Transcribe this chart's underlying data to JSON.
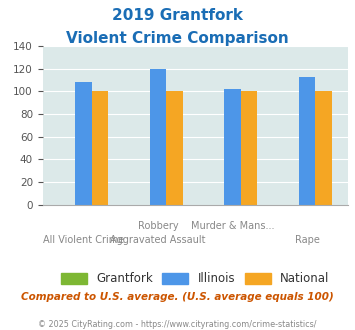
{
  "title_line1": "2019 Grantfork",
  "title_line2": "Violent Crime Comparison",
  "top_labels": [
    "",
    "Robbery",
    "Murder & Mans...",
    ""
  ],
  "bottom_labels": [
    "All Violent Crime",
    "Aggravated Assault",
    "",
    "Rape"
  ],
  "series": {
    "Grantfork": [
      0,
      0,
      0,
      0
    ],
    "Illinois": [
      108,
      120,
      102,
      113
    ],
    "National": [
      100,
      100,
      100,
      100
    ]
  },
  "colors": {
    "Grantfork": "#7db733",
    "Illinois": "#4d96e8",
    "National": "#f5a623"
  },
  "ylim": [
    0,
    140
  ],
  "yticks": [
    0,
    20,
    40,
    60,
    80,
    100,
    120,
    140
  ],
  "plot_bg": "#dce9e9",
  "title_color": "#1a6db5",
  "footer_text": "Compared to U.S. average. (U.S. average equals 100)",
  "copyright_text": "© 2025 CityRating.com - https://www.cityrating.com/crime-statistics/",
  "footer_color": "#cc5500",
  "copyright_color": "#888888"
}
